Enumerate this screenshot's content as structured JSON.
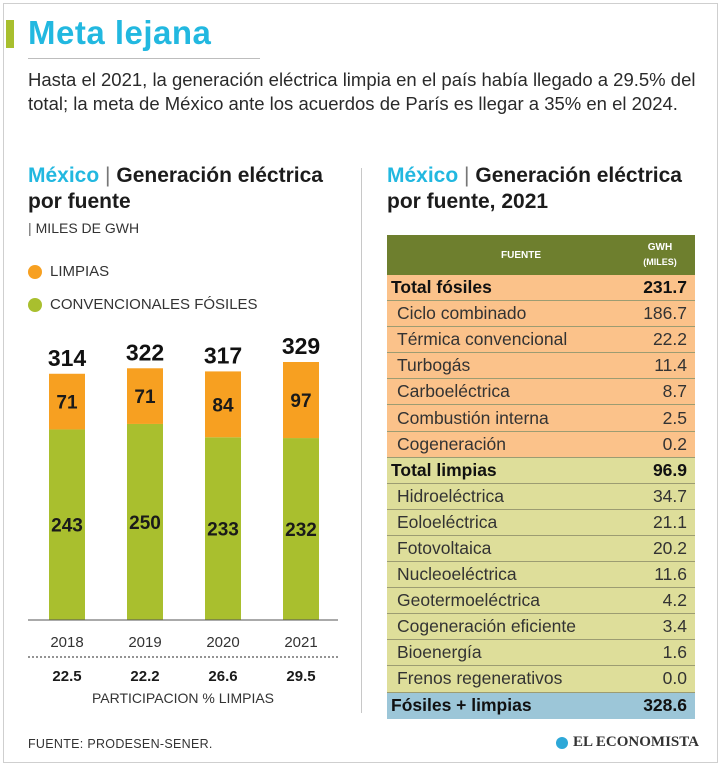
{
  "header": {
    "title": "Meta lejana",
    "subtitle": "Hasta el 2021, la generación eléctrica limpia en el país había llegado a 29.5% del total; la meta de México ante los acuerdos de París es llegar a 35% en el 2024."
  },
  "left": {
    "country": "México",
    "separator": "|",
    "title": "Generación eléctrica por fuente",
    "units": "MILES DE GWH",
    "units_bar": "|",
    "legend": {
      "clean": "LIMPIAS",
      "fossil": "CONVENCIONALES FÓSILES"
    },
    "participation_label": "PARTICIPACION % LIMPIAS"
  },
  "right": {
    "country": "México",
    "separator": "|",
    "title": "Generación eléctrica por fuente, 2021",
    "table": {
      "col_source": "FUENTE",
      "col_value": "GWH",
      "col_value_sub": "(MILES)",
      "fossil_total": {
        "name": "Total fósiles",
        "value": "231.7"
      },
      "fossil_rows": [
        {
          "name": "Ciclo combinado",
          "value": "186.7"
        },
        {
          "name": "Térmica convencional",
          "value": "22.2"
        },
        {
          "name": "Turbogás",
          "value": "11.4"
        },
        {
          "name": "Carboeléctrica",
          "value": "8.7"
        },
        {
          "name": "Combustión interna",
          "value": "2.5"
        },
        {
          "name": "Cogeneración",
          "value": "0.2"
        }
      ],
      "clean_total": {
        "name": "Total limpias",
        "value": "96.9"
      },
      "clean_rows": [
        {
          "name": "Hidroeléctrica",
          "value": "34.7"
        },
        {
          "name": "Eoloeléctrica",
          "value": "21.1"
        },
        {
          "name": "Fotovoltaica",
          "value": "20.2"
        },
        {
          "name": "Nucleoeléctrica",
          "value": "11.6"
        },
        {
          "name": "Geotermoeléctrica",
          "value": "4.2"
        },
        {
          "name": "Cogeneración eficiente",
          "value": "3.4"
        },
        {
          "name": "Bioenergía",
          "value": "1.6"
        },
        {
          "name": "Frenos regenerativos",
          "value": "0.0"
        }
      ],
      "grand_total": {
        "name": "Fósiles + limpias",
        "value": "328.6"
      }
    }
  },
  "footer": {
    "source": "FUENTE: PRODESEN-SENER.",
    "brand": "EL ECONOMISTA"
  },
  "colors": {
    "accent_blue": "#22b8e0",
    "clean_orange": "#f7a021",
    "fossil_green": "#a9bf2e",
    "table_header": "#6e7f2e",
    "fossil_rows": "#fbc28a",
    "clean_rows": "#dede9a",
    "grand_row": "#9cc6d8"
  },
  "chart_data": {
    "type": "bar",
    "stacked": true,
    "categories": [
      "2018",
      "2019",
      "2020",
      "2021"
    ],
    "series": [
      {
        "name": "CONVENCIONALES FÓSILES",
        "values": [
          243,
          250,
          233,
          232
        ]
      },
      {
        "name": "LIMPIAS",
        "values": [
          71,
          71,
          84,
          97
        ]
      }
    ],
    "totals": [
      314,
      322,
      317,
      329
    ],
    "participation": [
      22.5,
      22.2,
      26.6,
      29.5
    ],
    "participation_labels": [
      "22.5",
      "22.2",
      "26.6",
      "29.5"
    ],
    "title": "Generación eléctrica por fuente",
    "ylabel": "MILES DE GWH",
    "ylim": [
      0,
      329
    ]
  }
}
